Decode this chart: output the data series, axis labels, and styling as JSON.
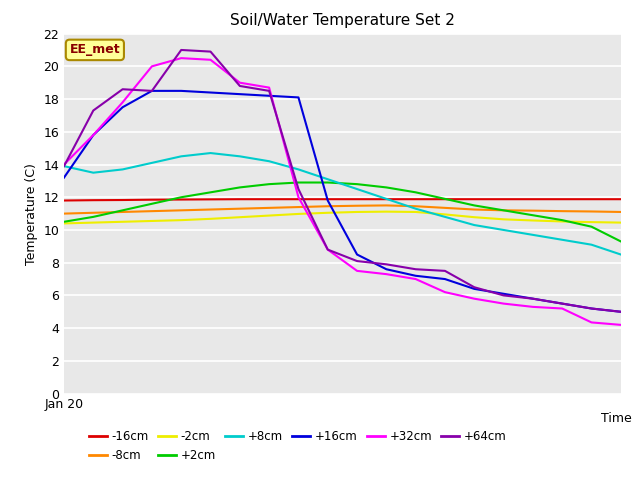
{
  "title": "Soil/Water Temperature Set 2",
  "xlabel": "Time",
  "ylabel": "Temperature (C)",
  "ylim": [
    0,
    22
  ],
  "yticks": [
    0,
    2,
    4,
    6,
    8,
    10,
    12,
    14,
    16,
    18,
    20,
    22
  ],
  "x_label_start": "Jan 20",
  "annotation": "EE_met",
  "fig_bg_color": "#ffffff",
  "plot_bg_color": "#e8e8e8",
  "grid_color": "#ffffff",
  "series": {
    "-16cm": {
      "color": "#dd0000",
      "y": [
        11.8,
        11.82,
        11.83,
        11.85,
        11.86,
        11.87,
        11.88,
        11.88,
        11.88,
        11.88,
        11.88,
        11.88,
        11.88,
        11.88,
        11.88,
        11.88,
        11.88,
        11.88,
        11.88,
        11.88
      ]
    },
    "-8cm": {
      "color": "#ff8800",
      "y": [
        11.0,
        11.05,
        11.1,
        11.15,
        11.2,
        11.25,
        11.3,
        11.35,
        11.4,
        11.45,
        11.48,
        11.5,
        11.45,
        11.35,
        11.25,
        11.2,
        11.18,
        11.15,
        11.13,
        11.1
      ]
    },
    "-2cm": {
      "color": "#eeee00",
      "y": [
        10.4,
        10.45,
        10.5,
        10.55,
        10.6,
        10.68,
        10.78,
        10.88,
        10.98,
        11.05,
        11.1,
        11.12,
        11.1,
        10.95,
        10.78,
        10.65,
        10.58,
        10.52,
        10.48,
        10.45
      ]
    },
    "+2cm": {
      "color": "#00cc00",
      "y": [
        10.5,
        10.8,
        11.2,
        11.6,
        12.0,
        12.3,
        12.6,
        12.8,
        12.9,
        12.9,
        12.8,
        12.6,
        12.3,
        11.9,
        11.5,
        11.2,
        10.9,
        10.6,
        10.2,
        9.3
      ]
    },
    "+8cm": {
      "color": "#00cccc",
      "y": [
        13.9,
        13.5,
        13.7,
        14.1,
        14.5,
        14.7,
        14.5,
        14.2,
        13.7,
        13.1,
        12.5,
        11.9,
        11.3,
        10.8,
        10.3,
        10.0,
        9.7,
        9.4,
        9.1,
        8.5
      ]
    },
    "+16cm": {
      "color": "#0000dd",
      "y": [
        13.2,
        15.8,
        17.5,
        18.5,
        18.5,
        18.4,
        18.3,
        18.2,
        18.1,
        11.8,
        8.5,
        7.6,
        7.2,
        7.0,
        6.4,
        6.1,
        5.8,
        5.5,
        5.2,
        5.0
      ]
    },
    "+32cm": {
      "color": "#ff00ff",
      "y": [
        14.0,
        15.8,
        17.8,
        20.0,
        20.5,
        20.4,
        19.0,
        18.7,
        12.0,
        8.8,
        7.5,
        7.3,
        7.0,
        6.2,
        5.8,
        5.5,
        5.3,
        5.2,
        4.35,
        4.2
      ]
    },
    "+64cm": {
      "color": "#8800aa",
      "y": [
        13.9,
        17.3,
        18.6,
        18.5,
        21.0,
        20.9,
        18.8,
        18.5,
        12.5,
        8.8,
        8.1,
        7.9,
        7.6,
        7.5,
        6.5,
        6.0,
        5.8,
        5.5,
        5.2,
        5.0
      ]
    }
  },
  "legend_order": [
    "-16cm",
    "-8cm",
    "-2cm",
    "+2cm",
    "+8cm",
    "+16cm",
    "+32cm",
    "+64cm"
  ]
}
